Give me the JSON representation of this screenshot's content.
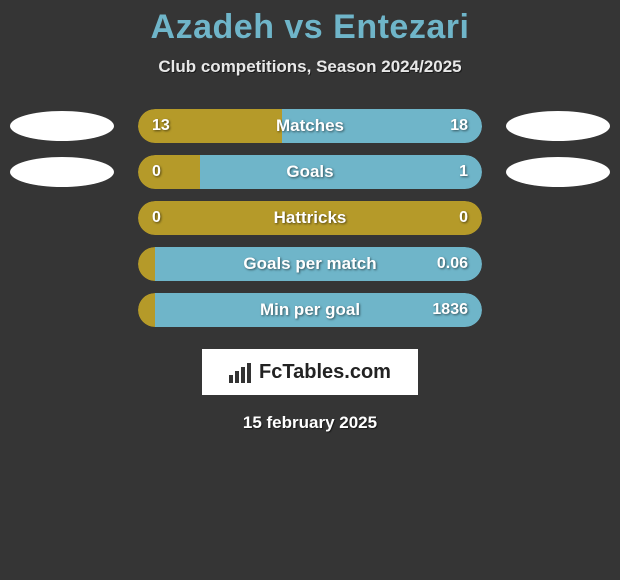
{
  "title": "Azadeh vs Entezari",
  "subtitle": "Club competitions, Season 2024/2025",
  "date": "15 february 2025",
  "brand": "FcTables.com",
  "colors": {
    "left": "#b59a29",
    "right": "#6fb5c9",
    "title": "#6fb5c9",
    "background": "#353535"
  },
  "rows": [
    {
      "label": "Matches",
      "left_value": "13",
      "right_value": "18",
      "left_pct": 41.9,
      "right_pct": 58.1,
      "show_avatars": true,
      "left_color": "#b59a29",
      "right_color": "#6fb5c9"
    },
    {
      "label": "Goals",
      "left_value": "0",
      "right_value": "1",
      "left_pct": 18,
      "right_pct": 82,
      "show_avatars": true,
      "left_color": "#b59a29",
      "right_color": "#6fb5c9"
    },
    {
      "label": "Hattricks",
      "left_value": "0",
      "right_value": "0",
      "left_pct": 50,
      "right_pct": 50,
      "show_avatars": false,
      "left_color": "#b59a29",
      "right_color": "#b59a29"
    },
    {
      "label": "Goals per match",
      "left_value": "",
      "right_value": "0.06",
      "left_pct": 5,
      "right_pct": 95,
      "show_avatars": false,
      "left_color": "#b59a29",
      "right_color": "#6fb5c9"
    },
    {
      "label": "Min per goal",
      "left_value": "",
      "right_value": "1836",
      "left_pct": 5,
      "right_pct": 95,
      "show_avatars": false,
      "left_color": "#b59a29",
      "right_color": "#6fb5c9"
    }
  ]
}
